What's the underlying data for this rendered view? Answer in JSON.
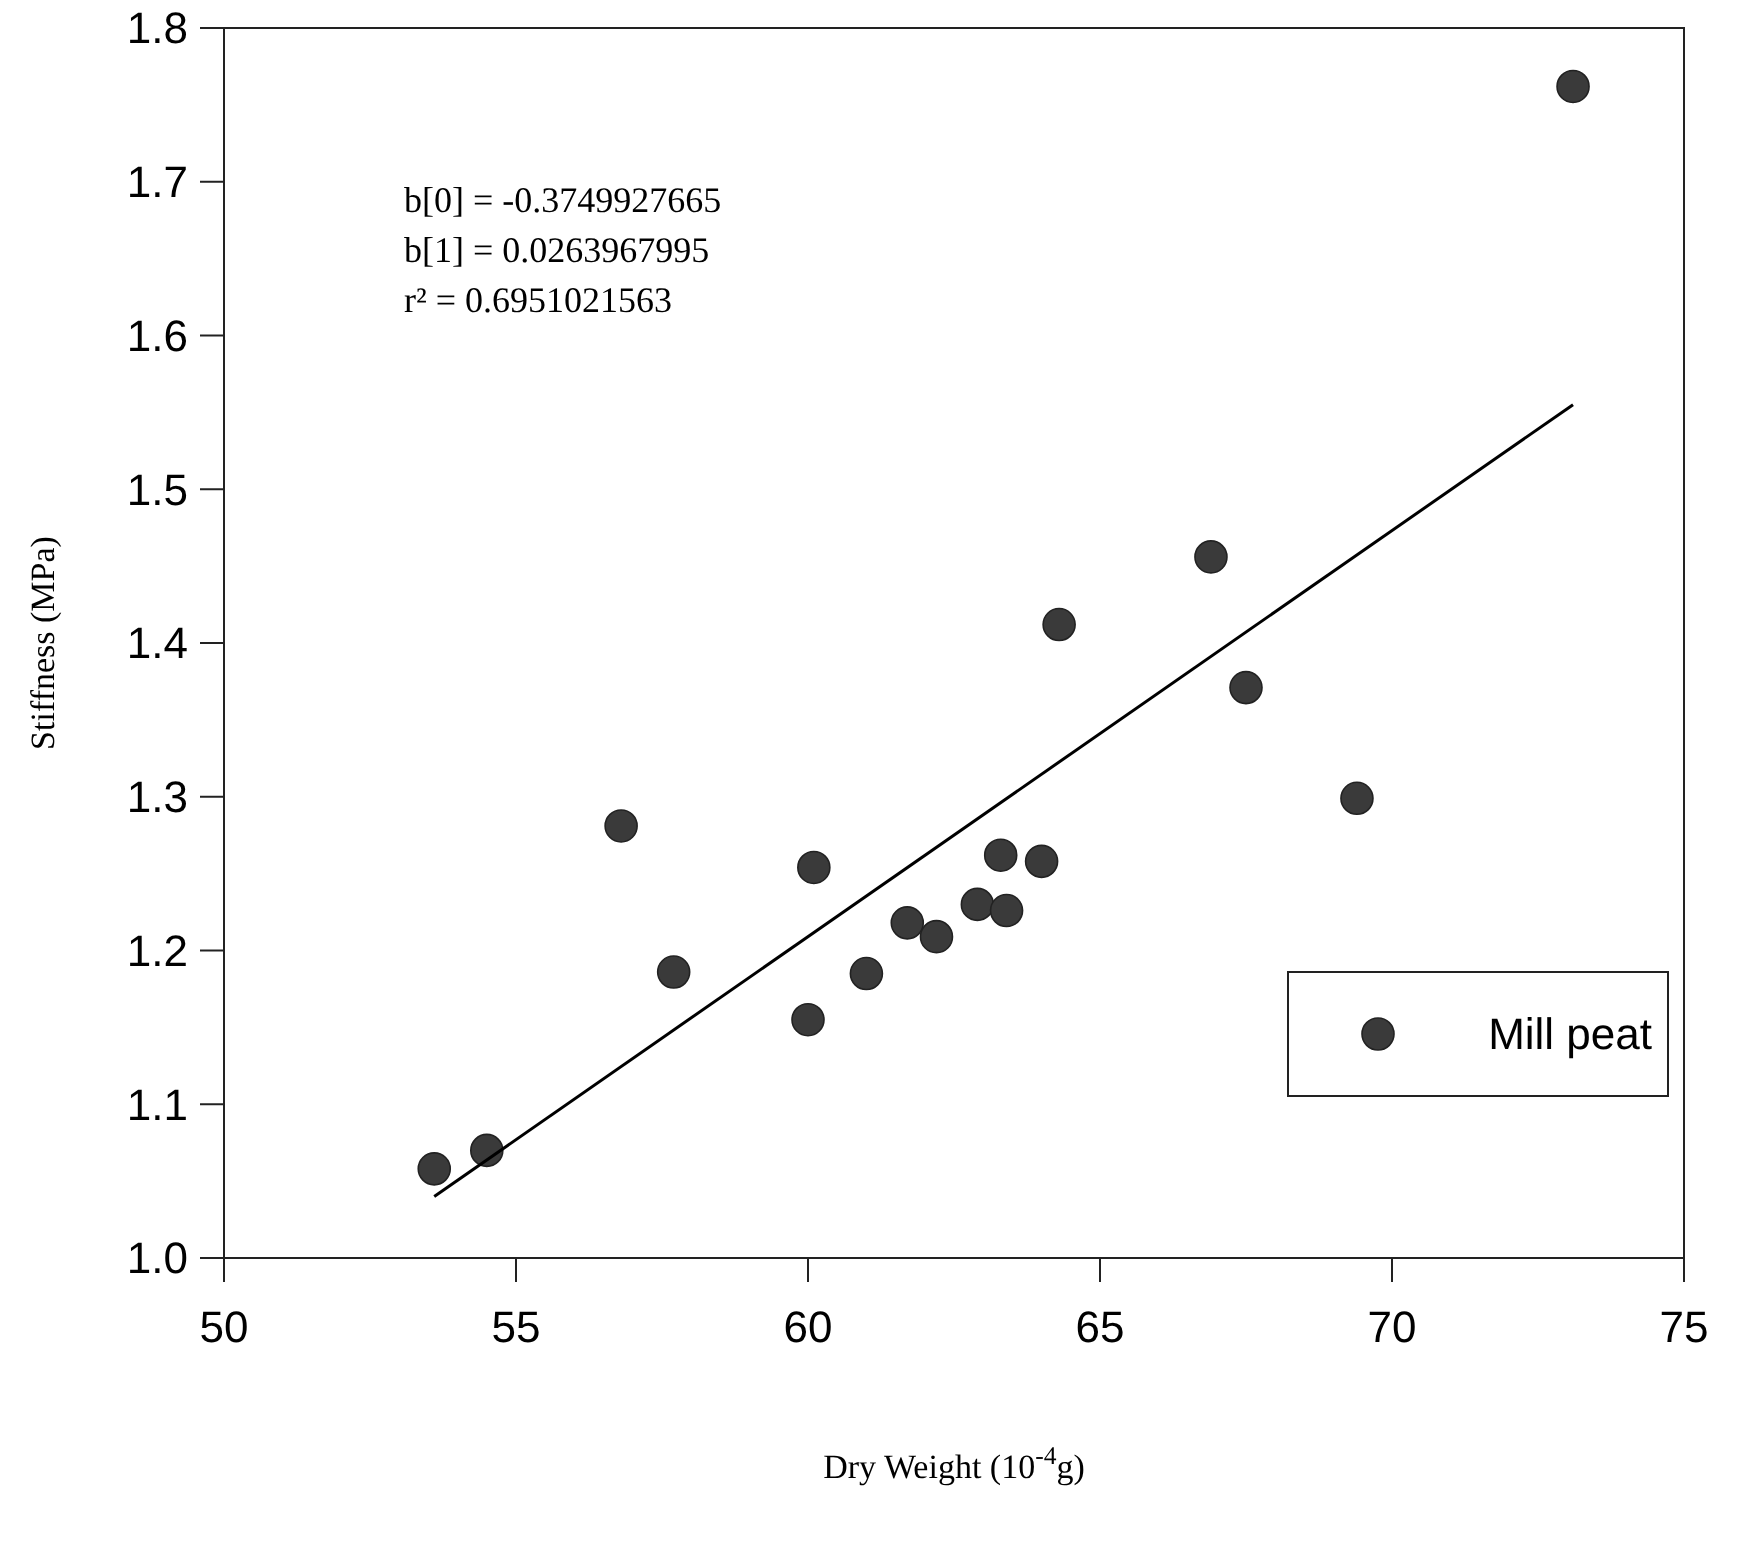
{
  "chart_data": {
    "type": "scatter",
    "xlabel": "Dry Weight (10$^{-4}$g)",
    "ylabel": "Stiffness (MPa)",
    "annotations": [
      "b[0] = -0.3749927665",
      "b[1] = 0.0263967995",
      "r² = 0.6951021563"
    ],
    "x": [
      53.6,
      54.5,
      56.8,
      57.7,
      60.0,
      60.1,
      61.0,
      61.7,
      62.2,
      62.9,
      63.3,
      63.4,
      64.0,
      64.3,
      66.9,
      67.5,
      69.4,
      73.1
    ],
    "series": [
      {
        "name": "Mill peat",
        "color": "#3a3a3a",
        "values": [
          1.058,
          1.07,
          1.281,
          1.186,
          1.155,
          1.254,
          1.185,
          1.218,
          1.209,
          1.23,
          1.262,
          1.226,
          1.258,
          1.412,
          1.456,
          1.371,
          1.299,
          1.762
        ]
      },
      {
        "type": "line",
        "marker": "none",
        "color": "#000000",
        "x": [
          53.6,
          73.1
        ],
        "values": [
          1.04,
          1.555
        ]
      }
    ],
    "xlim": [
      50,
      75
    ],
    "xticks": [
      50,
      55,
      60,
      65,
      70,
      75
    ],
    "ylim": [
      1.0,
      1.8
    ],
    "yticks": [
      {
        "value": 1.0,
        "label": "1.0"
      },
      {
        "value": 1.1,
        "label": "1.1"
      },
      {
        "value": 1.2,
        "label": "1.2"
      },
      {
        "value": 1.3,
        "label": "1.3"
      },
      {
        "value": 1.4,
        "label": "1.4"
      },
      {
        "value": 1.5,
        "label": "1.5"
      },
      {
        "value": 1.6,
        "label": "1.6"
      },
      {
        "value": 1.7,
        "label": "1.7"
      },
      {
        "value": 1.8,
        "label": "1.8"
      }
    ],
    "marker": "circle",
    "legend": "bottom right",
    "grid": false
  }
}
